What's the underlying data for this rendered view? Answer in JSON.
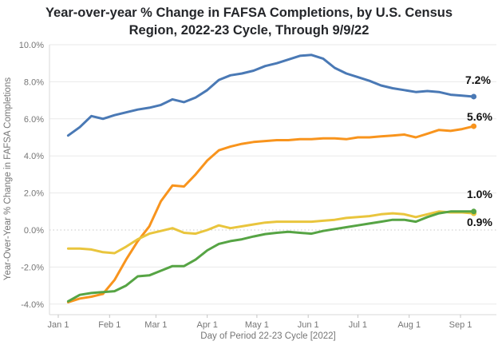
{
  "title": "Year-over-year % Change in FAFSA Completions, by U.S. Census Region, 2022-23 Cycle, Through 9/9/22",
  "title_lines": [
    "Year-over-year % Change in FAFSA Completions, by U.S. Census",
    "Region, 2022-23 Cycle, Through 9/9/22"
  ],
  "chart_data": {
    "type": "line",
    "title": "Year-over-year % Change in FAFSA Completions, by U.S. Census Region, 2022-23 Cycle, Through 9/9/22",
    "xlabel": "Day of Period 22-23 Cycle [2022]",
    "ylabel": "Year-Over-Year % Change in FAFSA Completions",
    "ylim": [
      -4.6,
      10.3
    ],
    "grid": "horizontal, dotted line at 0%",
    "legend": "none (direct end-of-line value labels)",
    "y_ticks": [
      {
        "label": "10.0%",
        "value": 10
      },
      {
        "label": "8.0%",
        "value": 8
      },
      {
        "label": "6.0%",
        "value": 6
      },
      {
        "label": "4.0%",
        "value": 4
      },
      {
        "label": "2.0%",
        "value": 2
      },
      {
        "label": "0.0%",
        "value": 0
      },
      {
        "label": "-2.0%",
        "value": -2
      },
      {
        "label": "-4.0%",
        "value": -4
      }
    ],
    "x_ticks": [
      {
        "label": "Jan 1",
        "day": 1
      },
      {
        "label": "Feb 1",
        "day": 32
      },
      {
        "label": "Mar 1",
        "day": 60
      },
      {
        "label": "Apr 1",
        "day": 91
      },
      {
        "label": "May 1",
        "day": 121
      },
      {
        "label": "Jun 1",
        "day": 152
      },
      {
        "label": "Jul 1",
        "day": 182
      },
      {
        "label": "Aug 1",
        "day": 213
      },
      {
        "label": "Sep 1",
        "day": 244
      }
    ],
    "x_dates": [
      "Jan 7",
      "Jan 14",
      "Jan 21",
      "Jan 28",
      "Feb 4",
      "Feb 11",
      "Feb 18",
      "Feb 25",
      "Mar 4",
      "Mar 11",
      "Mar 18",
      "Mar 25",
      "Apr 1",
      "Apr 8",
      "Apr 15",
      "Apr 22",
      "Apr 29",
      "May 6",
      "May 13",
      "May 20",
      "May 27",
      "Jun 3",
      "Jun 10",
      "Jun 17",
      "Jun 24",
      "Jul 1",
      "Jul 8",
      "Jul 15",
      "Jul 22",
      "Jul 29",
      "Aug 5",
      "Aug 12",
      "Aug 19",
      "Aug 26",
      "Sep 2",
      "Sep 9"
    ],
    "x_days": [
      7,
      14,
      21,
      28,
      35,
      42,
      49,
      56,
      63,
      70,
      77,
      84,
      91,
      98,
      105,
      112,
      119,
      126,
      133,
      140,
      147,
      154,
      161,
      168,
      175,
      182,
      189,
      196,
      203,
      210,
      217,
      224,
      231,
      238,
      245,
      252
    ],
    "series": [
      {
        "name": "blue-series",
        "color": "#4a79b5",
        "end_label": "7.2%",
        "values": [
          5.1,
          5.55,
          6.15,
          6.0,
          6.2,
          6.35,
          6.5,
          6.6,
          6.75,
          7.05,
          6.9,
          7.15,
          7.55,
          8.1,
          8.35,
          8.45,
          8.6,
          8.85,
          9.0,
          9.2,
          9.4,
          9.45,
          9.25,
          8.75,
          8.45,
          8.25,
          8.05,
          7.8,
          7.65,
          7.55,
          7.45,
          7.5,
          7.45,
          7.3,
          7.25,
          7.2
        ]
      },
      {
        "name": "orange-series",
        "color": "#f8941d",
        "end_label": "5.6%",
        "values": [
          -3.9,
          -3.7,
          -3.6,
          -3.45,
          -2.7,
          -1.6,
          -0.6,
          0.2,
          1.55,
          2.4,
          2.35,
          3.0,
          3.75,
          4.3,
          4.5,
          4.65,
          4.75,
          4.8,
          4.85,
          4.85,
          4.9,
          4.9,
          4.95,
          4.95,
          4.9,
          5.0,
          5.0,
          5.05,
          5.1,
          5.15,
          5.0,
          5.2,
          5.4,
          5.35,
          5.45,
          5.6
        ]
      },
      {
        "name": "yellow-series",
        "color": "#e9c53d",
        "end_label": "0.9%",
        "values": [
          -1.0,
          -1.0,
          -1.05,
          -1.2,
          -1.25,
          -0.9,
          -0.5,
          -0.2,
          -0.05,
          0.1,
          -0.15,
          -0.2,
          0.0,
          0.25,
          0.1,
          0.2,
          0.3,
          0.4,
          0.45,
          0.45,
          0.45,
          0.45,
          0.5,
          0.55,
          0.65,
          0.7,
          0.75,
          0.85,
          0.9,
          0.85,
          0.7,
          0.85,
          1.0,
          0.95,
          0.95,
          0.9
        ]
      },
      {
        "name": "green-series",
        "color": "#56a444",
        "end_label": "1.0%",
        "values": [
          -3.85,
          -3.5,
          -3.4,
          -3.35,
          -3.3,
          -3.0,
          -2.5,
          -2.45,
          -2.2,
          -1.95,
          -1.95,
          -1.6,
          -1.1,
          -0.75,
          -0.6,
          -0.5,
          -0.35,
          -0.22,
          -0.15,
          -0.1,
          -0.15,
          -0.2,
          -0.05,
          0.05,
          0.15,
          0.25,
          0.35,
          0.45,
          0.55,
          0.55,
          0.45,
          0.7,
          0.9,
          1.0,
          1.0,
          1.0
        ]
      }
    ]
  },
  "colors": {
    "background": "#ffffff",
    "title_text": "#24262a",
    "axis_text": "#757575",
    "end_label_text": "#111111",
    "gridline": "#eaeaea",
    "zero_line": "#c8c8c8",
    "axis_line": "#dadada",
    "tick_mark": "#c4c4c4"
  }
}
